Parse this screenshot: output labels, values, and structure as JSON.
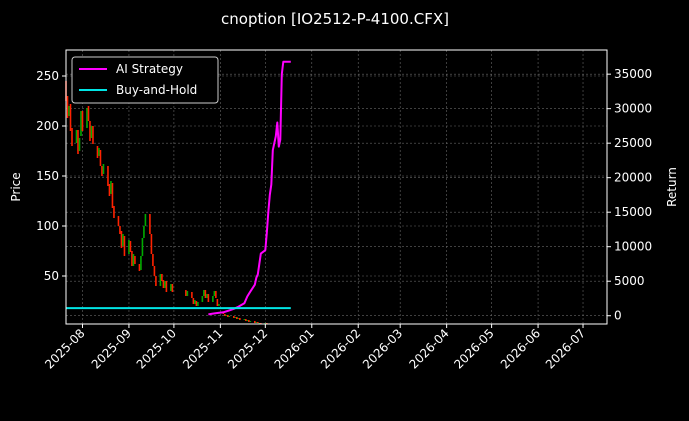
{
  "chart_data": {
    "type": "line",
    "title": "cnoption [IO2512-P-4100.CFX]",
    "ylabel": "Price",
    "y2label": "Return",
    "background": "#000000",
    "ylim": [
      2,
      276
    ],
    "y2lim": [
      -1200,
      38500
    ],
    "yticks": [
      50,
      100,
      150,
      200,
      250
    ],
    "y2ticks": [
      0,
      5000,
      10000,
      15000,
      20000,
      25000,
      30000,
      35000
    ],
    "xlim": [
      "2025-07-21",
      "2026-07-17"
    ],
    "xticks": [
      "2025-08",
      "2025-09",
      "2025-10",
      "2025-11",
      "2025-12",
      "2026-01",
      "2026-02",
      "2026-03",
      "2026-04",
      "2026-05",
      "2026-06",
      "2026-07"
    ],
    "grid": true,
    "legend": {
      "placement": "top-left",
      "entries": [
        {
          "name": "AI Strategy",
          "color": "#ff00ff"
        },
        {
          "name": "Buy-and-Hold",
          "color": "#00e5e5"
        }
      ]
    },
    "candlesticks": {
      "up_color": "#00aa00",
      "down_color": "#ff2200",
      "points": [
        [
          "2025-07-21",
          245,
          225
        ],
        [
          "2025-07-22",
          230,
          208
        ],
        [
          "2025-07-23",
          210,
          220
        ],
        [
          "2025-07-24",
          222,
          195
        ],
        [
          "2025-07-25",
          198,
          180
        ],
        [
          "2025-07-28",
          183,
          196
        ],
        [
          "2025-07-29",
          196,
          172
        ],
        [
          "2025-07-30",
          175,
          188
        ],
        [
          "2025-07-31",
          190,
          215
        ],
        [
          "2025-08-01",
          215,
          195
        ],
        [
          "2025-08-04",
          198,
          218
        ],
        [
          "2025-08-05",
          220,
          205
        ],
        [
          "2025-08-06",
          205,
          185
        ],
        [
          "2025-08-07",
          188,
          200
        ],
        [
          "2025-08-08",
          200,
          182
        ],
        [
          "2025-08-11",
          180,
          168
        ],
        [
          "2025-08-12",
          170,
          178
        ],
        [
          "2025-08-13",
          176,
          160
        ],
        [
          "2025-08-14",
          160,
          150
        ],
        [
          "2025-08-15",
          152,
          162
        ],
        [
          "2025-08-18",
          160,
          140
        ],
        [
          "2025-08-19",
          142,
          130
        ],
        [
          "2025-08-20",
          132,
          145
        ],
        [
          "2025-08-21",
          143,
          118
        ],
        [
          "2025-08-22",
          120,
          108
        ],
        [
          "2025-08-25",
          110,
          100
        ],
        [
          "2025-08-26",
          100,
          92
        ],
        [
          "2025-08-27",
          95,
          78
        ],
        [
          "2025-08-28",
          80,
          92
        ],
        [
          "2025-08-29",
          90,
          70
        ],
        [
          "2025-09-01",
          72,
          86
        ],
        [
          "2025-09-02",
          85,
          74
        ],
        [
          "2025-09-03",
          75,
          60
        ],
        [
          "2025-09-04",
          60,
          72
        ],
        [
          "2025-09-05",
          70,
          62
        ],
        [
          "2025-09-08",
          62,
          55
        ],
        [
          "2025-09-09",
          56,
          70
        ],
        [
          "2025-09-10",
          70,
          88
        ],
        [
          "2025-09-11",
          88,
          100
        ],
        [
          "2025-09-12",
          100,
          112
        ],
        [
          "2025-09-15",
          112,
          92
        ],
        [
          "2025-09-16",
          92,
          72
        ],
        [
          "2025-09-17",
          72,
          60
        ],
        [
          "2025-09-18",
          60,
          50
        ],
        [
          "2025-09-19",
          50,
          40
        ],
        [
          "2025-09-22",
          40,
          52
        ],
        [
          "2025-09-23",
          52,
          45
        ],
        [
          "2025-09-24",
          46,
          38
        ],
        [
          "2025-09-25",
          38,
          45
        ],
        [
          "2025-09-26",
          45,
          34
        ],
        [
          "2025-09-29",
          35,
          42
        ],
        [
          "2025-09-30",
          42,
          34
        ],
        [
          "2025-10-09",
          36,
          30
        ],
        [
          "2025-10-10",
          30,
          35
        ],
        [
          "2025-10-13",
          34,
          28
        ],
        [
          "2025-10-14",
          28,
          22
        ],
        [
          "2025-10-15",
          22,
          26
        ],
        [
          "2025-10-16",
          25,
          20
        ],
        [
          "2025-10-17",
          20,
          24
        ],
        [
          "2025-10-20",
          24,
          30
        ],
        [
          "2025-10-21",
          30,
          36
        ],
        [
          "2025-10-22",
          36,
          28
        ],
        [
          "2025-10-23",
          28,
          32
        ],
        [
          "2025-10-24",
          32,
          24
        ],
        [
          "2025-10-27",
          24,
          30
        ],
        [
          "2025-10-28",
          30,
          35
        ],
        [
          "2025-10-29",
          35,
          28
        ],
        [
          "2025-10-30",
          27,
          20
        ],
        [
          "2025-10-31",
          20,
          22
        ],
        [
          "2025-11-03",
          14,
          12
        ],
        [
          "2025-11-04",
          12,
          10
        ],
        [
          "2025-11-05",
          10,
          11
        ],
        [
          "2025-11-06",
          11,
          9
        ],
        [
          "2025-11-07",
          9,
          10
        ],
        [
          "2025-11-10",
          10,
          8
        ],
        [
          "2025-11-11",
          8,
          9
        ],
        [
          "2025-11-12",
          9,
          7
        ],
        [
          "2025-11-13",
          7,
          8
        ],
        [
          "2025-11-14",
          8,
          6
        ],
        [
          "2025-11-17",
          6,
          7
        ],
        [
          "2025-11-18",
          7,
          5
        ],
        [
          "2025-11-19",
          5,
          6
        ],
        [
          "2025-11-20",
          6,
          4
        ],
        [
          "2025-11-21",
          4,
          5
        ],
        [
          "2025-11-24",
          5,
          3
        ],
        [
          "2025-11-25",
          3,
          4
        ],
        [
          "2025-11-26",
          4,
          3
        ],
        [
          "2025-11-27",
          3,
          3
        ],
        [
          "2025-11-28",
          3,
          2
        ],
        [
          "2025-12-01",
          2,
          3
        ],
        [
          "2025-12-02",
          3,
          2
        ]
      ]
    },
    "series": [
      {
        "name": "AI Strategy",
        "axis": "right",
        "x": [
          "2025-10-24",
          "2025-10-27",
          "2025-10-30",
          "2025-11-03",
          "2025-11-06",
          "2025-11-10",
          "2025-11-13",
          "2025-11-17",
          "2025-11-19",
          "2025-11-21",
          "2025-11-24",
          "2025-11-25",
          "2025-11-26",
          "2025-11-27",
          "2025-11-28",
          "2025-12-01",
          "2025-12-02",
          "2025-12-03",
          "2025-12-04",
          "2025-12-05",
          "2025-12-06",
          "2025-12-08",
          "2025-12-09",
          "2025-12-10",
          "2025-12-11",
          "2025-12-12",
          "2025-12-13",
          "2025-12-15",
          "2025-12-16",
          "2025-12-17",
          "2025-12-18"
        ],
        "values": [
          200,
          300,
          400,
          500,
          700,
          1000,
          1300,
          1800,
          2800,
          3500,
          4500,
          5500,
          6000,
          7500,
          9000,
          9500,
          12000,
          15000,
          17500,
          19000,
          24000,
          26000,
          28000,
          24500,
          25500,
          35000,
          36800,
          36800,
          36800,
          36800,
          36800
        ]
      },
      {
        "name": "Buy-and-Hold",
        "axis": "right",
        "x": [
          "2025-07-21",
          "2025-12-18"
        ],
        "values": [
          1100,
          1100
        ]
      }
    ]
  }
}
